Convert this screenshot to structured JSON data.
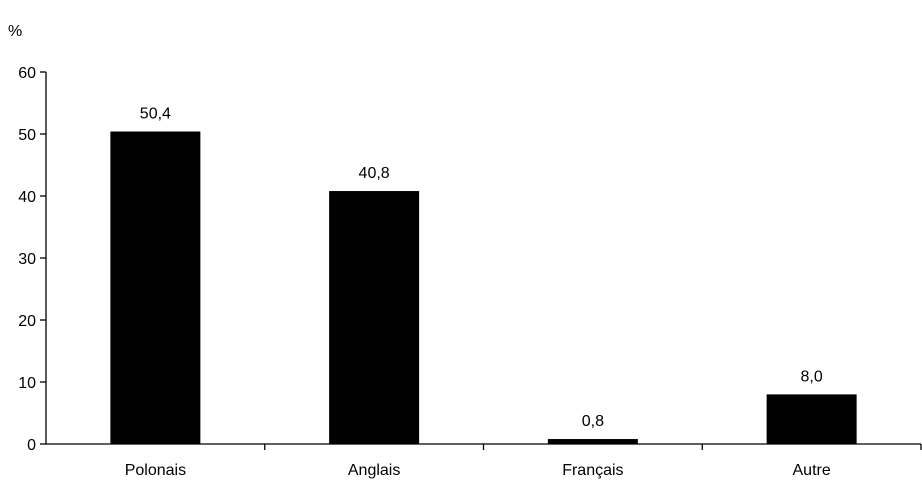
{
  "chart_data": {
    "type": "bar",
    "ylabel": "%",
    "categories": [
      "Polonais",
      "Anglais",
      "Français",
      "Autre"
    ],
    "values": [
      50.4,
      40.8,
      0.8,
      8.0
    ],
    "value_labels": [
      "50,4",
      "40,8",
      "0,8",
      "8,0"
    ],
    "ylim": [
      0,
      60
    ],
    "yticks": [
      0,
      10,
      20,
      30,
      40,
      50,
      60
    ],
    "ytick_labels": [
      "0",
      "10",
      "20",
      "30",
      "40",
      "50",
      "60"
    ],
    "grid": false,
    "legend": "none",
    "bar_color": "#000000"
  }
}
